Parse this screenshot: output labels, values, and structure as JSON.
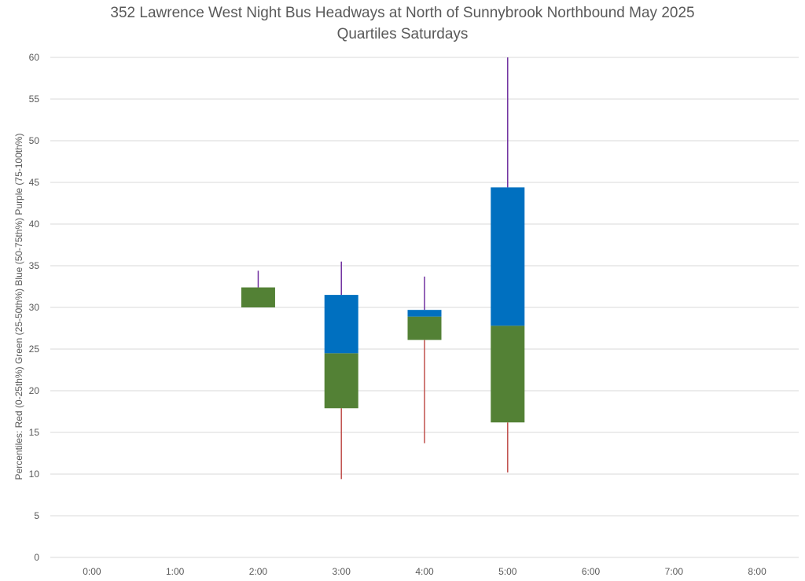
{
  "chart_data": {
    "type": "box",
    "title": "352 Lawrence West Night Bus Headways at North of Sunnybrook Northbound May 2025",
    "subtitle": "Quartiles Saturdays",
    "xlabel": "",
    "ylabel": "Percentiles:  Red (0-25th%)  Green (25-50th%)  Blue (50-75th%)  Purple (75-100th%)",
    "categories": [
      "0:00",
      "1:00",
      "2:00",
      "3:00",
      "4:00",
      "5:00",
      "6:00",
      "7:00",
      "8:00"
    ],
    "ylim": [
      0,
      60
    ],
    "yticks": [
      0,
      5,
      10,
      15,
      20,
      25,
      30,
      35,
      40,
      45,
      50,
      55,
      60
    ],
    "grid": true,
    "colors": {
      "min_to_q1": "#c0504d",
      "q1_to_median": "#538135",
      "median_to_q3": "#0070c0",
      "q3_to_max": "#7030a0",
      "grid": "#d9d9d9"
    },
    "boxes": [
      {
        "category": "2:00",
        "min": 30.0,
        "q1": 30.0,
        "median": 30.0,
        "q3": 32.4,
        "max": 34.4
      },
      {
        "category": "3:00",
        "min": 9.4,
        "q1": 17.9,
        "median": 24.5,
        "q3": 31.5,
        "max": 35.5
      },
      {
        "category": "4:00",
        "min": 13.7,
        "q1": 26.1,
        "median": 28.9,
        "q3": 29.7,
        "max": 33.7
      },
      {
        "category": "5:00",
        "min": 10.2,
        "q1": 16.2,
        "median": 27.8,
        "q3": 44.4,
        "max": 60.0
      }
    ]
  }
}
